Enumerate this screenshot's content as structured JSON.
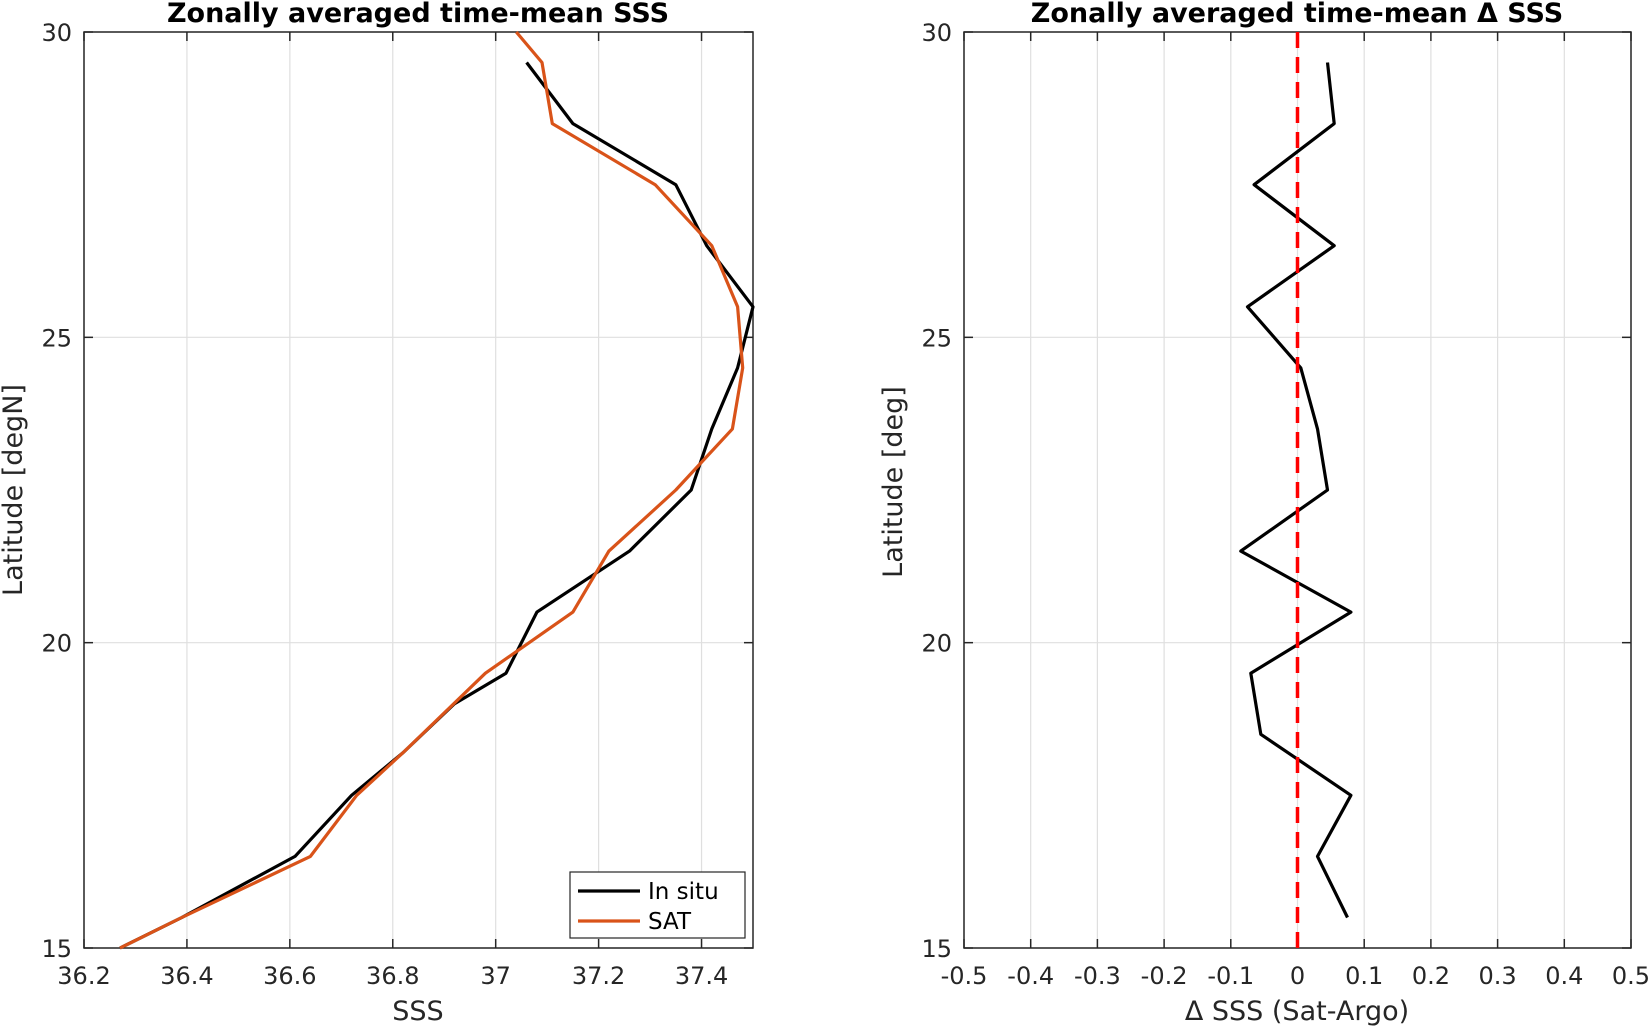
{
  "chart_data": [
    {
      "type": "line",
      "title": "Zonally averaged time-mean SSS",
      "xlabel": "SSS",
      "ylabel": "Latitude [degN]",
      "xlim": [
        36.2,
        37.5
      ],
      "ylim": [
        15,
        30
      ],
      "xticks": [
        36.2,
        36.4,
        36.6,
        36.8,
        37,
        37.2,
        37.4
      ],
      "xtick_labels": [
        "36.2",
        "36.4",
        "36.6",
        "36.8",
        "37",
        "37.2",
        "37.4"
      ],
      "yticks": [
        15,
        20,
        25,
        30
      ],
      "ytick_labels": [
        "15",
        "20",
        "25",
        "30"
      ],
      "grid": true,
      "legend_position": "bottom-right",
      "series": [
        {
          "name": "In situ",
          "color": "#000000",
          "points": [
            [
              36.27,
              15.0
            ],
            [
              36.39,
              15.5
            ],
            [
              36.61,
              16.5
            ],
            [
              36.72,
              17.5
            ],
            [
              36.82,
              18.2
            ],
            [
              36.92,
              19.0
            ],
            [
              37.02,
              19.5
            ],
            [
              37.08,
              20.5
            ],
            [
              37.26,
              21.5
            ],
            [
              37.38,
              22.5
            ],
            [
              37.42,
              23.5
            ],
            [
              37.47,
              24.5
            ],
            [
              37.5,
              25.5
            ],
            [
              37.41,
              26.5
            ],
            [
              37.35,
              27.5
            ],
            [
              37.15,
              28.5
            ],
            [
              37.06,
              29.5
            ]
          ]
        },
        {
          "name": "SAT",
          "color": "#D95319",
          "points": [
            [
              36.27,
              15.0
            ],
            [
              36.39,
              15.5
            ],
            [
              36.64,
              16.5
            ],
            [
              36.73,
              17.5
            ],
            [
              36.82,
              18.2
            ],
            [
              36.98,
              19.5
            ],
            [
              37.15,
              20.5
            ],
            [
              37.22,
              21.5
            ],
            [
              37.35,
              22.5
            ],
            [
              37.46,
              23.5
            ],
            [
              37.48,
              24.5
            ],
            [
              37.47,
              25.5
            ],
            [
              37.42,
              26.5
            ],
            [
              37.31,
              27.5
            ],
            [
              37.11,
              28.5
            ],
            [
              37.09,
              29.5
            ],
            [
              37.04,
              30.0
            ]
          ]
        }
      ]
    },
    {
      "type": "line",
      "title": "Zonally averaged time-mean Δ SSS",
      "xlabel": "Δ SSS (Sat-Argo)",
      "ylabel": "Latitude [deg]",
      "xlim": [
        -0.5,
        0.5
      ],
      "ylim": [
        15,
        30
      ],
      "xticks": [
        -0.5,
        -0.4,
        -0.3,
        -0.2,
        -0.1,
        0,
        0.1,
        0.2,
        0.3,
        0.4,
        0.5
      ],
      "xtick_labels": [
        "-0.5",
        "-0.4",
        "-0.3",
        "-0.2",
        "-0.1",
        "0",
        "0.1",
        "0.2",
        "0.3",
        "0.4",
        "0.5"
      ],
      "yticks": [
        15,
        20,
        25,
        30
      ],
      "ytick_labels": [
        "15",
        "20",
        "25",
        "30"
      ],
      "grid": true,
      "reference_line": {
        "x": 0,
        "color": "#FF0000",
        "style": "dashed"
      },
      "series": [
        {
          "color": "#000000",
          "points": [
            [
              0.075,
              15.5
            ],
            [
              0.03,
              16.5
            ],
            [
              0.08,
              17.5
            ],
            [
              -0.055,
              18.5
            ],
            [
              -0.07,
              19.5
            ],
            [
              0.08,
              20.5
            ],
            [
              -0.085,
              21.5
            ],
            [
              0.045,
              22.5
            ],
            [
              0.03,
              23.5
            ],
            [
              0.005,
              24.5
            ],
            [
              -0.075,
              25.5
            ],
            [
              0.055,
              26.5
            ],
            [
              -0.065,
              27.5
            ],
            [
              0.055,
              28.5
            ],
            [
              0.045,
              29.5
            ]
          ]
        }
      ]
    }
  ]
}
